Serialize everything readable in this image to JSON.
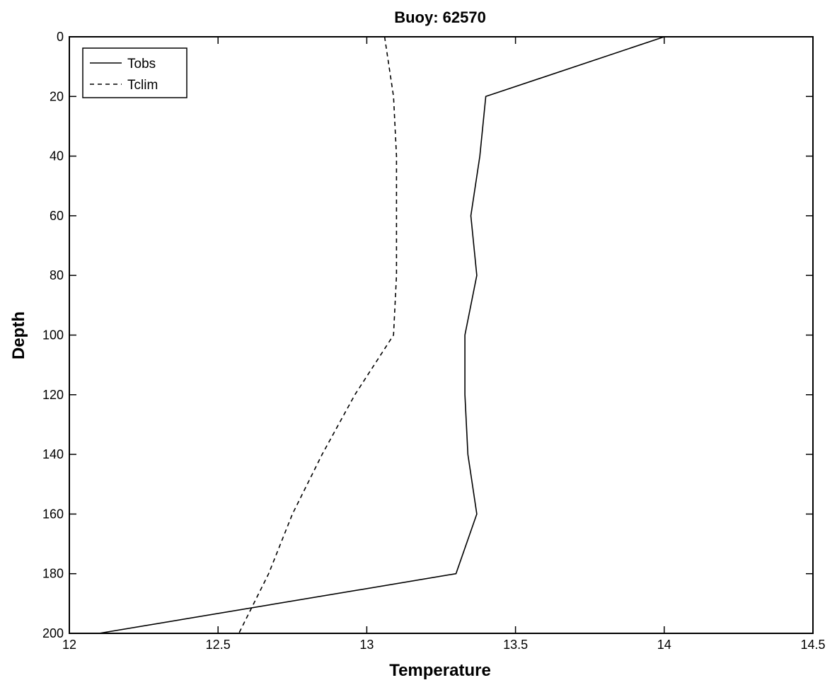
{
  "chart_data": {
    "type": "line",
    "title": "Buoy: 62570",
    "xlabel": "Temperature",
    "ylabel": "Depth",
    "xlim": [
      12,
      14.5
    ],
    "ylim": [
      0,
      200
    ],
    "y_reversed": true,
    "xticks": [
      12,
      12.5,
      13,
      13.5,
      14,
      14.5
    ],
    "xtick_labels": [
      "12",
      "12.5",
      "13",
      "13.5",
      "14",
      "14.5"
    ],
    "yticks": [
      0,
      20,
      40,
      60,
      80,
      100,
      120,
      140,
      160,
      180,
      200
    ],
    "ytick_labels": [
      "0",
      "20",
      "40",
      "60",
      "80",
      "100",
      "120",
      "140",
      "160",
      "180",
      "200"
    ],
    "grid": false,
    "legend_position": "top-left",
    "series": [
      {
        "name": "Tobs",
        "style": "solid",
        "color": "#000000",
        "x": [
          14.0,
          13.4,
          13.38,
          13.35,
          13.37,
          13.33,
          13.33,
          13.34,
          13.37,
          13.3,
          12.1
        ],
        "y": [
          0,
          20,
          40,
          60,
          80,
          100,
          120,
          140,
          160,
          180,
          200
        ]
      },
      {
        "name": "Tclim",
        "style": "dashed",
        "color": "#000000",
        "x": [
          13.06,
          13.09,
          13.1,
          13.1,
          13.1,
          13.09,
          12.96,
          12.85,
          12.75,
          12.67,
          12.57
        ],
        "y": [
          0,
          20,
          40,
          60,
          80,
          100,
          120,
          140,
          160,
          180,
          200
        ]
      }
    ]
  }
}
